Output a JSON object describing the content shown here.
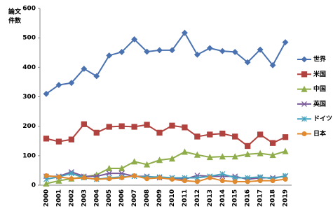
{
  "chart_data": {
    "type": "line",
    "ylabel": [
      "論文",
      "件数"
    ],
    "categories": [
      "2000",
      "2001",
      "2002",
      "2003",
      "2004",
      "2005",
      "2006",
      "2007",
      "2008",
      "2009",
      "2010",
      "2011",
      "2012",
      "2013",
      "2014",
      "2015",
      "2016",
      "2017",
      "2018",
      "2019"
    ],
    "ylim": [
      0,
      600
    ],
    "yticks": [
      0,
      100,
      200,
      300,
      400,
      500,
      600
    ],
    "grid": false,
    "legend": "right",
    "series": [
      {
        "name": "世界",
        "color": "#4a72b0",
        "marker": "diamond",
        "values": [
          310,
          340,
          347,
          395,
          370,
          440,
          452,
          495,
          453,
          458,
          458,
          517,
          443,
          465,
          455,
          452,
          417,
          460,
          407,
          485
        ]
      },
      {
        "name": "米国",
        "color": "#b0433f",
        "marker": "square",
        "values": [
          158,
          148,
          155,
          207,
          178,
          198,
          200,
          198,
          205,
          178,
          202,
          196,
          165,
          172,
          175,
          165,
          133,
          172,
          143,
          163
        ]
      },
      {
        "name": "中国",
        "color": "#8fad4b",
        "marker": "triangle",
        "values": [
          5,
          15,
          22,
          28,
          35,
          57,
          57,
          80,
          70,
          85,
          90,
          113,
          103,
          95,
          97,
          97,
          105,
          108,
          102,
          115
        ]
      },
      {
        "name": "英国",
        "color": "#7a5a9a",
        "marker": "x",
        "values": [
          30,
          30,
          45,
          30,
          30,
          40,
          40,
          30,
          30,
          25,
          25,
          20,
          33,
          30,
          30,
          30,
          20,
          25,
          25,
          30
        ]
      },
      {
        "name": "ドイツ",
        "color": "#45a3bd",
        "marker": "star",
        "values": [
          20,
          28,
          40,
          25,
          20,
          25,
          28,
          30,
          28,
          28,
          25,
          25,
          25,
          30,
          38,
          25,
          25,
          28,
          22,
          32
        ]
      },
      {
        "name": "日本",
        "color": "#e0892f",
        "marker": "circle",
        "values": [
          32,
          28,
          22,
          25,
          20,
          22,
          25,
          32,
          22,
          25,
          20,
          15,
          12,
          25,
          15,
          12,
          12,
          15,
          15,
          20
        ]
      }
    ]
  }
}
